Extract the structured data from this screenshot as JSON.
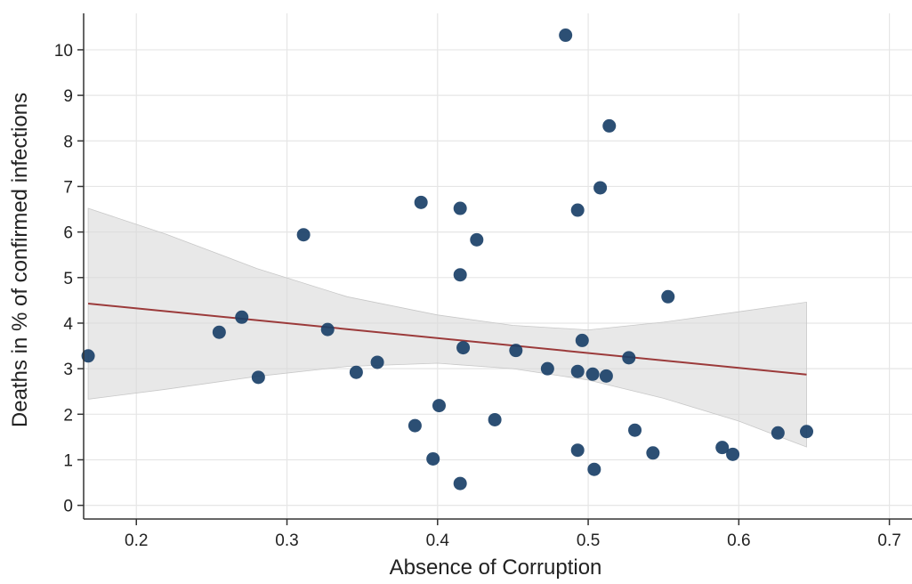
{
  "chart_data": {
    "type": "scatter",
    "xlabel": "Absence of Corruption",
    "ylabel": "Deaths in % of confirmed infections",
    "xlim": [
      0.165,
      0.715
    ],
    "ylim": [
      -0.3,
      10.8
    ],
    "x_ticks": [
      0.2,
      0.3,
      0.4,
      0.5,
      0.6,
      0.7
    ],
    "x_tick_labels": [
      "0.2",
      "0.3",
      "0.4",
      "0.5",
      "0.6",
      "0.7"
    ],
    "y_ticks": [
      0,
      1,
      2,
      3,
      4,
      5,
      6,
      7,
      8,
      9,
      10
    ],
    "y_tick_labels": [
      "0",
      "1",
      "2",
      "3",
      "4",
      "5",
      "6",
      "7",
      "8",
      "9",
      "10"
    ],
    "grid": true,
    "colors": {
      "points": "#1a4068",
      "fit_line": "#9b3a3a",
      "confidence_band": "#d9d9d9",
      "grid": "#e6e6e6",
      "axis": "#333333"
    },
    "points": [
      {
        "x": 0.168,
        "y": 3.28
      },
      {
        "x": 0.255,
        "y": 3.8
      },
      {
        "x": 0.27,
        "y": 4.13
      },
      {
        "x": 0.281,
        "y": 2.81
      },
      {
        "x": 0.311,
        "y": 5.94
      },
      {
        "x": 0.327,
        "y": 3.86
      },
      {
        "x": 0.346,
        "y": 2.92
      },
      {
        "x": 0.36,
        "y": 3.14
      },
      {
        "x": 0.385,
        "y": 1.75
      },
      {
        "x": 0.389,
        "y": 6.65
      },
      {
        "x": 0.397,
        "y": 1.02
      },
      {
        "x": 0.401,
        "y": 2.19
      },
      {
        "x": 0.415,
        "y": 6.52
      },
      {
        "x": 0.415,
        "y": 5.06
      },
      {
        "x": 0.415,
        "y": 0.48
      },
      {
        "x": 0.417,
        "y": 3.46
      },
      {
        "x": 0.426,
        "y": 5.83
      },
      {
        "x": 0.438,
        "y": 1.88
      },
      {
        "x": 0.452,
        "y": 3.4
      },
      {
        "x": 0.473,
        "y": 3.0
      },
      {
        "x": 0.485,
        "y": 10.32
      },
      {
        "x": 0.493,
        "y": 6.48
      },
      {
        "x": 0.493,
        "y": 2.94
      },
      {
        "x": 0.493,
        "y": 1.21
      },
      {
        "x": 0.496,
        "y": 3.62
      },
      {
        "x": 0.503,
        "y": 2.88
      },
      {
        "x": 0.504,
        "y": 0.79
      },
      {
        "x": 0.508,
        "y": 6.97
      },
      {
        "x": 0.512,
        "y": 2.84
      },
      {
        "x": 0.514,
        "y": 8.33
      },
      {
        "x": 0.527,
        "y": 3.24
      },
      {
        "x": 0.531,
        "y": 1.65
      },
      {
        "x": 0.543,
        "y": 1.15
      },
      {
        "x": 0.553,
        "y": 4.58
      },
      {
        "x": 0.589,
        "y": 1.27
      },
      {
        "x": 0.596,
        "y": 1.12
      },
      {
        "x": 0.626,
        "y": 1.59
      },
      {
        "x": 0.645,
        "y": 1.62
      }
    ],
    "fit_line": {
      "x": [
        0.168,
        0.645
      ],
      "y": [
        4.43,
        2.87
      ]
    },
    "confidence_band": {
      "x": [
        0.168,
        0.22,
        0.28,
        0.34,
        0.4,
        0.45,
        0.5,
        0.55,
        0.6,
        0.645
      ],
      "lower": [
        2.33,
        2.55,
        2.83,
        3.05,
        3.12,
        3.0,
        2.75,
        2.35,
        1.85,
        1.28
      ],
      "upper": [
        6.52,
        5.95,
        5.2,
        4.58,
        4.18,
        3.95,
        3.85,
        4.02,
        4.25,
        4.46
      ]
    }
  }
}
